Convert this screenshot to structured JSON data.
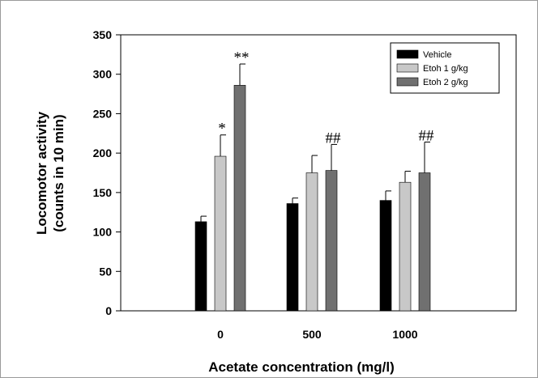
{
  "chart_data": {
    "type": "bar",
    "title": "",
    "xlabel": "Acetate concentration (mg/l)",
    "ylabel": "Locomotor activity (counts in 10 min)",
    "ylabel_lines": [
      "Locomotor activity",
      "(counts in 10 min)"
    ],
    "categories": [
      "0",
      "500",
      "1000"
    ],
    "ylim": [
      0,
      350
    ],
    "yticks": [
      "0",
      "50",
      "100",
      "150",
      "200",
      "250",
      "300",
      "350"
    ],
    "legend_position": "top-right",
    "grid": false,
    "series": [
      {
        "name": "Vehicle",
        "color": "#000000",
        "values": [
          113,
          136,
          140
        ],
        "errors": [
          7,
          7,
          12
        ]
      },
      {
        "name": "Etoh 1 g/kg",
        "color": "#c8c8c8",
        "values": [
          196,
          175,
          163
        ],
        "errors": [
          27,
          22,
          14
        ]
      },
      {
        "name": "Etoh 2 g/kg",
        "color": "#707070",
        "values": [
          286,
          178,
          175
        ],
        "errors": [
          27,
          33,
          39
        ]
      }
    ],
    "annotations": [
      {
        "text": "*",
        "category": "0",
        "series": "Etoh 1 g/kg"
      },
      {
        "text": "**",
        "category": "0",
        "series": "Etoh 2 g/kg"
      },
      {
        "text": "##",
        "category": "500",
        "series": "Etoh 2 g/kg"
      },
      {
        "text": "##",
        "category": "1000",
        "series": "Etoh 2 g/kg"
      }
    ]
  }
}
